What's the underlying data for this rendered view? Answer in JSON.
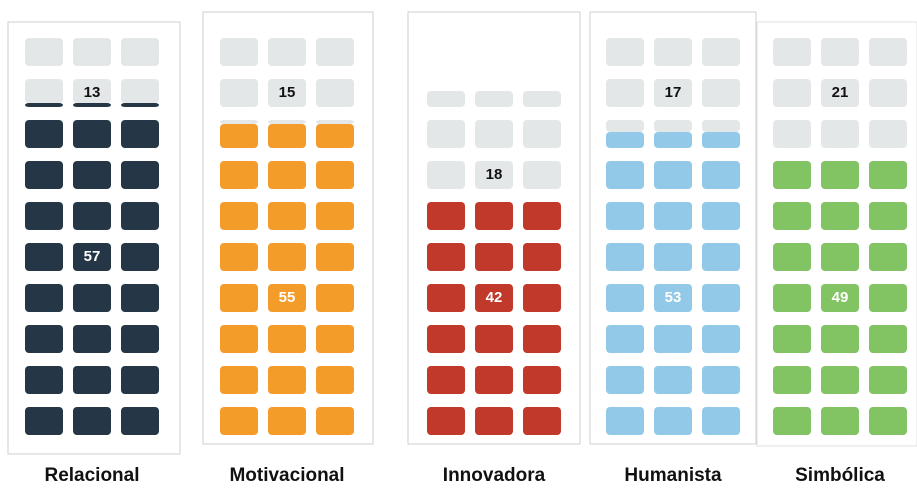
{
  "chart_data": {
    "type": "waffle",
    "categories": [
      "Relacional",
      "Motivacional",
      "Innovadora",
      "Humanista",
      "Simbólica"
    ],
    "series": [
      {
        "color": "#e4e7e8",
        "values": [
          13,
          15,
          18,
          17,
          21
        ]
      },
      {
        "colors": [
          "#253746",
          "#f39c2a",
          "#c0392b",
          "#92c8e8",
          "#82c463"
        ],
        "values": [
          57,
          55,
          42,
          53,
          49
        ]
      }
    ]
  }
}
